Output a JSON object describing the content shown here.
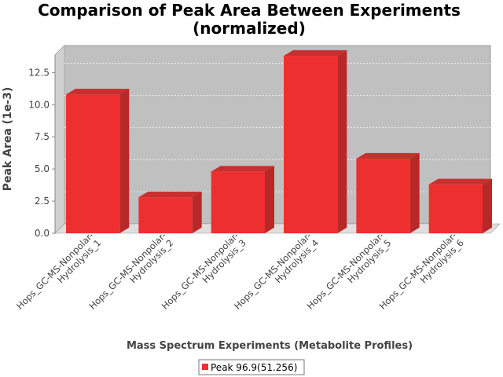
{
  "chart_data": {
    "type": "bar",
    "title_lines": [
      "Comparison of Peak Area Between Experiments",
      "(normalized)"
    ],
    "xlabel": "Mass Spectrum Experiments (Metabolite Profiles)",
    "ylabel": "Peak Area (1e-3)",
    "ylim": [
      0,
      14.6
    ],
    "yticks": [
      "0.0",
      "2.5",
      "5.0",
      "7.5",
      "10.0",
      "12.5"
    ],
    "grid": true,
    "categories": [
      [
        "Hops_GC-MS-Nonpolar-",
        "Hydrolysis_1"
      ],
      [
        "Hops_GC-MS-Nonpolar-",
        "Hydrolysis_2"
      ],
      [
        "Hops_GC-MS-Nonpolar-",
        "Hydrolysis_3"
      ],
      [
        "Hops_GC-MS-Nonpolar-",
        "Hydrolysis_4"
      ],
      [
        "Hops_GC-MS-Nonpolar-",
        "Hydrolysis_5"
      ],
      [
        "Hops_GC-MS-Nonpolar-",
        "Hydrolysis_6"
      ]
    ],
    "series": [
      {
        "name": "Peak 96.9(51.256)",
        "color": "#ee2f2f",
        "values": [
          10.8,
          2.8,
          4.8,
          13.8,
          5.8,
          3.8
        ]
      }
    ],
    "legend_position": "bottom-center"
  }
}
